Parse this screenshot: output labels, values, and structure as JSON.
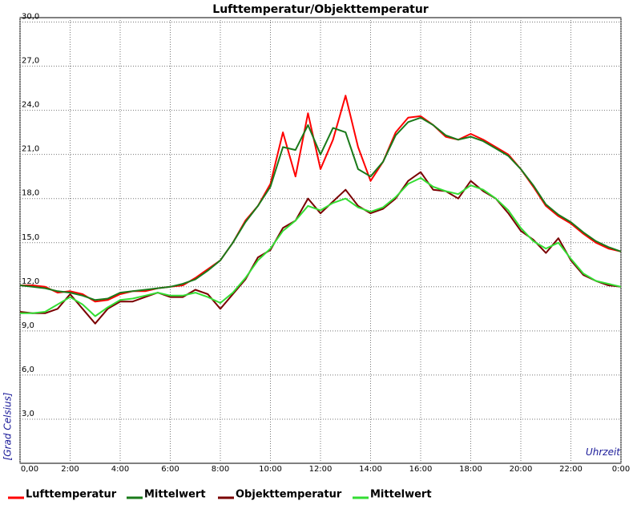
{
  "chart_data": {
    "type": "line",
    "title": "Lufttemperatur/Objekttemperatur",
    "x_label": "Uhrzeit",
    "y_label": "[Grad Celsius]",
    "x": [
      0,
      0.5,
      1,
      1.5,
      2,
      2.5,
      3,
      3.5,
      4,
      4.5,
      5,
      5.5,
      6,
      6.5,
      7,
      7.5,
      8,
      8.5,
      9,
      9.5,
      10,
      10.5,
      11,
      11.5,
      12,
      12.5,
      13,
      13.5,
      14,
      14.5,
      15,
      15.5,
      16,
      16.5,
      17,
      17.5,
      18,
      18.5,
      19,
      19.5,
      20,
      20.5,
      21,
      21.5,
      22,
      22.5,
      23,
      23.5,
      24
    ],
    "xlim": [
      0,
      24
    ],
    "xticks": [
      {
        "value": 0,
        "label": "0,00"
      },
      {
        "value": 2,
        "label": "2:00"
      },
      {
        "value": 4,
        "label": "4:00"
      },
      {
        "value": 6,
        "label": "6:00"
      },
      {
        "value": 8,
        "label": "8:00"
      },
      {
        "value": 10,
        "label": "10:00"
      },
      {
        "value": 12,
        "label": "12:00"
      },
      {
        "value": 14,
        "label": "14:00"
      },
      {
        "value": 16,
        "label": "16:00"
      },
      {
        "value": 18,
        "label": "18:00"
      },
      {
        "value": 20,
        "label": "20:00"
      },
      {
        "value": 22,
        "label": "22:00"
      },
      {
        "value": 24,
        "label": "0:00"
      }
    ],
    "ylim": [
      0,
      30.3
    ],
    "yticks": [
      {
        "value": 3,
        "label": "3,0"
      },
      {
        "value": 6,
        "label": "6,0"
      },
      {
        "value": 9,
        "label": "9,0"
      },
      {
        "value": 12,
        "label": "12,0"
      },
      {
        "value": 15,
        "label": "15,0"
      },
      {
        "value": 18,
        "label": "18,0"
      },
      {
        "value": 21,
        "label": "21,0"
      },
      {
        "value": 24,
        "label": "24,0"
      },
      {
        "value": 27,
        "label": "27,0"
      },
      {
        "value": 30,
        "label": "30,0"
      }
    ],
    "grid": true,
    "series": [
      {
        "name": "Lufttemperatur",
        "color": "#ff0000",
        "values": [
          12.1,
          12.1,
          12.0,
          11.6,
          11.7,
          11.5,
          11.0,
          11.1,
          11.5,
          11.7,
          11.7,
          11.9,
          12.0,
          12.1,
          12.6,
          13.2,
          13.8,
          15.0,
          16.5,
          17.5,
          19.0,
          22.5,
          19.5,
          23.8,
          20.0,
          22.0,
          25.0,
          21.5,
          19.2,
          20.5,
          22.5,
          23.5,
          23.6,
          23.0,
          22.2,
          22.0,
          22.4,
          22.0,
          21.5,
          21.0,
          20.0,
          18.8,
          17.5,
          16.8,
          16.3,
          15.6,
          15.0,
          14.6,
          14.4
        ]
      },
      {
        "name": "Mittelwert",
        "color": "#1a7a1a",
        "values": [
          12.1,
          12.0,
          11.9,
          11.7,
          11.6,
          11.4,
          11.1,
          11.2,
          11.6,
          11.7,
          11.8,
          11.9,
          12.0,
          12.2,
          12.5,
          13.1,
          13.8,
          15.0,
          16.4,
          17.5,
          18.8,
          21.5,
          21.3,
          23.0,
          21.0,
          22.8,
          22.5,
          20.0,
          19.5,
          20.5,
          22.3,
          23.2,
          23.5,
          23.0,
          22.3,
          22.0,
          22.2,
          21.9,
          21.4,
          20.9,
          20.0,
          18.9,
          17.6,
          16.9,
          16.4,
          15.7,
          15.1,
          14.7,
          14.4
        ]
      },
      {
        "name": "Objekttemperatur",
        "color": "#7a0000",
        "values": [
          10.3,
          10.2,
          10.2,
          10.5,
          11.5,
          10.5,
          9.5,
          10.5,
          11.0,
          11.0,
          11.3,
          11.6,
          11.3,
          11.3,
          11.8,
          11.5,
          10.5,
          11.5,
          12.5,
          14.0,
          14.5,
          16.0,
          16.5,
          18.0,
          17.0,
          17.8,
          18.6,
          17.5,
          17.0,
          17.3,
          18.0,
          19.2,
          19.8,
          18.6,
          18.5,
          18.0,
          19.2,
          18.5,
          18.0,
          17.0,
          15.8,
          15.2,
          14.3,
          15.3,
          13.8,
          12.8,
          12.4,
          12.1,
          12.0
        ]
      },
      {
        "name": "Mittelwert",
        "color": "#33dd33",
        "values": [
          10.2,
          10.2,
          10.3,
          10.8,
          11.3,
          10.8,
          10.0,
          10.6,
          11.1,
          11.2,
          11.4,
          11.6,
          11.4,
          11.4,
          11.6,
          11.3,
          10.9,
          11.6,
          12.6,
          13.8,
          14.6,
          15.8,
          16.5,
          17.5,
          17.2,
          17.7,
          18.0,
          17.4,
          17.1,
          17.4,
          18.1,
          19.0,
          19.4,
          18.8,
          18.5,
          18.3,
          18.9,
          18.6,
          18.0,
          17.2,
          16.0,
          15.1,
          14.6,
          15.0,
          13.9,
          12.9,
          12.4,
          12.2,
          12.0
        ]
      }
    ]
  }
}
